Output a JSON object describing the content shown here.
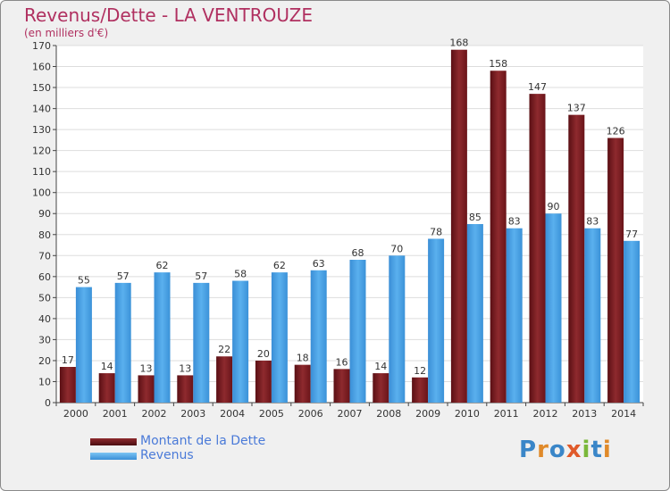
{
  "title": "Revenus/Dette - LA VENTROUZE",
  "subtitle": "(en milliers d'€)",
  "logo": {
    "text": "Proxiti",
    "letters": [
      {
        "ch": "P",
        "color": "#3a86c8"
      },
      {
        "ch": "r",
        "color": "#e08a2a"
      },
      {
        "ch": "o",
        "color": "#3a86c8"
      },
      {
        "ch": "x",
        "color": "#e05a2a"
      },
      {
        "ch": "i",
        "color": "#7ab83a"
      },
      {
        "ch": "t",
        "color": "#3a86c8"
      },
      {
        "ch": "i",
        "color": "#e08a2a"
      }
    ]
  },
  "chart_data": {
    "type": "bar",
    "categories": [
      "2000",
      "2001",
      "2002",
      "2003",
      "2004",
      "2005",
      "2006",
      "2007",
      "2008",
      "2009",
      "2010",
      "2011",
      "2012",
      "2013",
      "2014"
    ],
    "series": [
      {
        "name": "Montant de la Dette",
        "color": "#7a1e22",
        "values": [
          17,
          14,
          13,
          13,
          22,
          20,
          18,
          16,
          14,
          12,
          168,
          158,
          147,
          137,
          126
        ]
      },
      {
        "name": "Revenus",
        "color": "#4aa0e0",
        "values": [
          55,
          57,
          62,
          57,
          58,
          62,
          63,
          68,
          70,
          78,
          85,
          83,
          90,
          83,
          77
        ]
      }
    ],
    "ylim": [
      0,
      170
    ],
    "yticks": [
      0,
      10,
      20,
      30,
      40,
      50,
      60,
      70,
      80,
      90,
      100,
      110,
      120,
      130,
      140,
      150,
      160,
      170
    ],
    "grid": true,
    "legend": "bottom-left"
  }
}
